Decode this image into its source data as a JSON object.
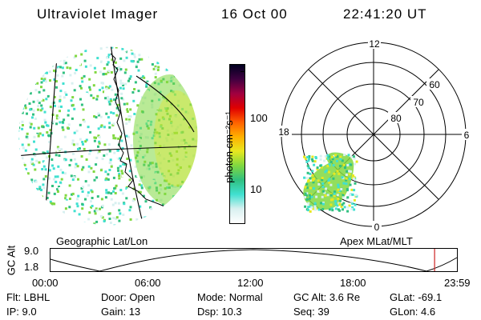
{
  "header": {
    "title": "Ultraviolet Imager",
    "date": "16 Oct 00",
    "time": "22:41:20 UT"
  },
  "colorbar": {
    "unit_label": "photon cm⁻²s⁻¹",
    "ticks": [
      "100",
      "10"
    ]
  },
  "polar_plot": {
    "mlt_labels": {
      "top": "12",
      "right": "6",
      "bottom": "0",
      "left": "18"
    },
    "lat_labels": [
      "60",
      "70",
      "80"
    ]
  },
  "left_map": {
    "caption": "Geographic Lat/Lon"
  },
  "right_map": {
    "caption": "Apex MLat/MLT"
  },
  "altitude_plot": {
    "ylabel": "GC Alt",
    "yticks": [
      "9.0",
      "1.8"
    ],
    "xticks": [
      "00:00",
      "06:00",
      "12:00",
      "18:00",
      "23:59"
    ],
    "current_time_fraction": 0.945
  },
  "status": {
    "row1": [
      {
        "label": "Flt:",
        "value": "LBHL"
      },
      {
        "label": "Door:",
        "value": "Open"
      },
      {
        "label": "Mode:",
        "value": "Normal"
      },
      {
        "label": "GC Alt:",
        "value": "3.6 Re"
      },
      {
        "label": "GLat:",
        "value": "-69.1"
      }
    ],
    "row2": [
      {
        "label": "IP:",
        "value": "9.0"
      },
      {
        "label": "Gain:",
        "value": "13"
      },
      {
        "label": "Dsp:",
        "value": "10.3"
      },
      {
        "label": "Seq:",
        "value": "39"
      },
      {
        "label": "GLon:",
        "value": "4.6"
      }
    ]
  },
  "colors": {
    "accent_marker": "#cc2222",
    "scale": [
      "#ffffff",
      "#d8f0f0",
      "#40e0d0",
      "#30c080",
      "#80d840",
      "#e8e820",
      "#ffb000",
      "#ff6000",
      "#e00000",
      "#a00040",
      "#400040",
      "#000020"
    ]
  }
}
